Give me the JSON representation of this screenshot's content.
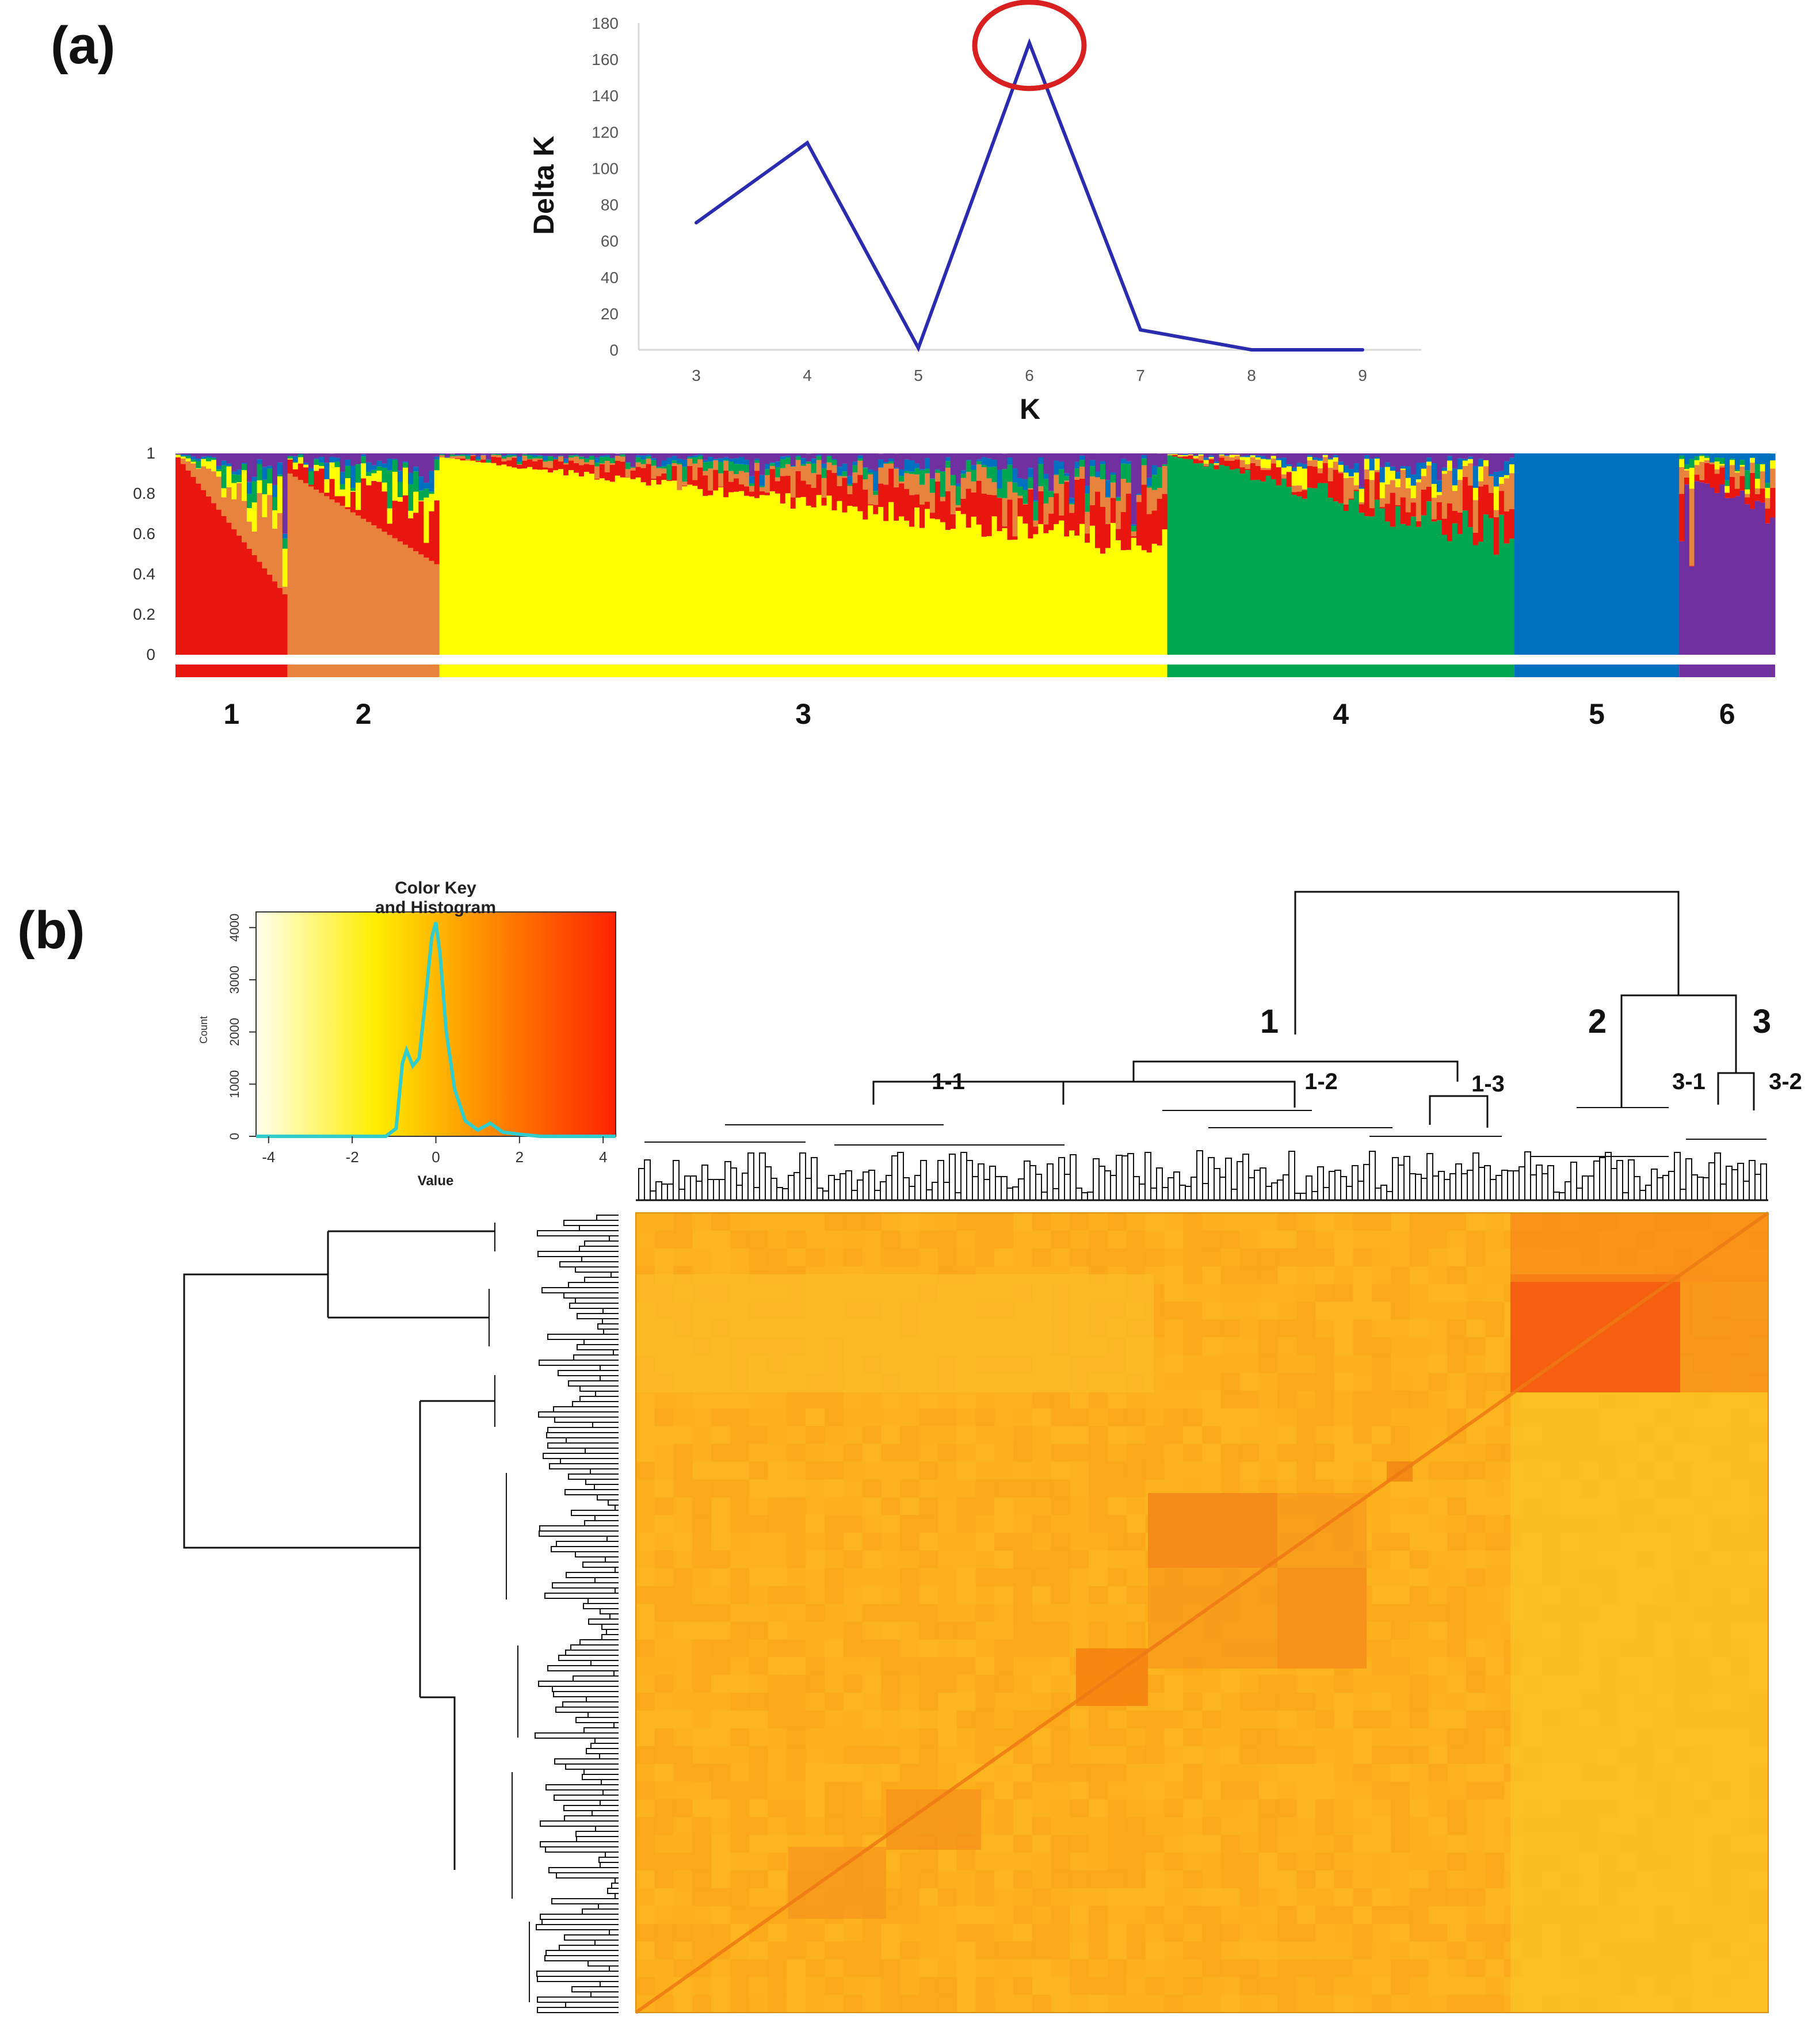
{
  "panel_a": {
    "label": "(a)",
    "chart_data": {
      "type": "line",
      "x": [
        3,
        4,
        5,
        6,
        7,
        8,
        9
      ],
      "y": [
        70,
        114,
        1,
        169,
        11,
        0,
        0
      ],
      "xlabel": "K",
      "ylabel": "Delta K",
      "xticks": [
        "3",
        "4",
        "5",
        "6",
        "7",
        "8",
        "9"
      ],
      "yticks": [
        "0",
        "20",
        "40",
        "60",
        "80",
        "100",
        "120",
        "140",
        "160",
        "180"
      ],
      "ylim": [
        0,
        180
      ],
      "line_color": "#2b2bb0",
      "highlight": {
        "x": 6,
        "y": 169,
        "color": "#d92020"
      }
    },
    "structure_plot": {
      "yticks": [
        "0",
        "0.2",
        "0.4",
        "0.6",
        "0.8",
        "1"
      ],
      "ylim": [
        0,
        1
      ],
      "clusters": [
        {
          "label": "1",
          "color": "#e8160f",
          "share": 0.07
        },
        {
          "label": "2",
          "color": "#e7833c",
          "share": 0.095
        },
        {
          "label": "3",
          "color": "#ffff00",
          "share": 0.455
        },
        {
          "label": "4",
          "color": "#00a650",
          "share": 0.217
        },
        {
          "label": "5",
          "color": "#0070c0",
          "share": 0.103
        },
        {
          "label": "6",
          "color": "#7030a0",
          "share": 0.06
        }
      ]
    }
  },
  "panel_b": {
    "label": "(b)",
    "color_key": {
      "title_line1": "Color Key",
      "title_line2": "and Histogram",
      "xlabel": "Value",
      "ylabel": "Count",
      "xticks": [
        "-4",
        "-2",
        "0",
        "2",
        "4"
      ],
      "yticks": [
        "0",
        "1000",
        "2000",
        "3000",
        "4000"
      ],
      "xlim": [
        -4.3,
        4.3
      ],
      "ylim": [
        0,
        4300
      ],
      "gradient": [
        "#ffffee",
        "#ffee00",
        "#ff9900",
        "#ff2200"
      ],
      "histogram": {
        "x": [
          -4.3,
          -1.2,
          -0.95,
          -0.8,
          -0.7,
          -0.55,
          -0.4,
          -0.25,
          -0.1,
          0.0,
          0.1,
          0.25,
          0.45,
          0.7,
          1.0,
          1.3,
          1.6,
          2.0,
          2.5,
          4.3
        ],
        "y": [
          0,
          0,
          150,
          1400,
          1650,
          1350,
          1500,
          2600,
          3800,
          4100,
          3500,
          2000,
          900,
          300,
          120,
          250,
          80,
          40,
          0,
          0
        ],
        "color": "#33cccc"
      }
    },
    "clusters": [
      "1",
      "2",
      "3",
      "1-1",
      "1-2",
      "1-3",
      "3-1",
      "3-2"
    ]
  }
}
